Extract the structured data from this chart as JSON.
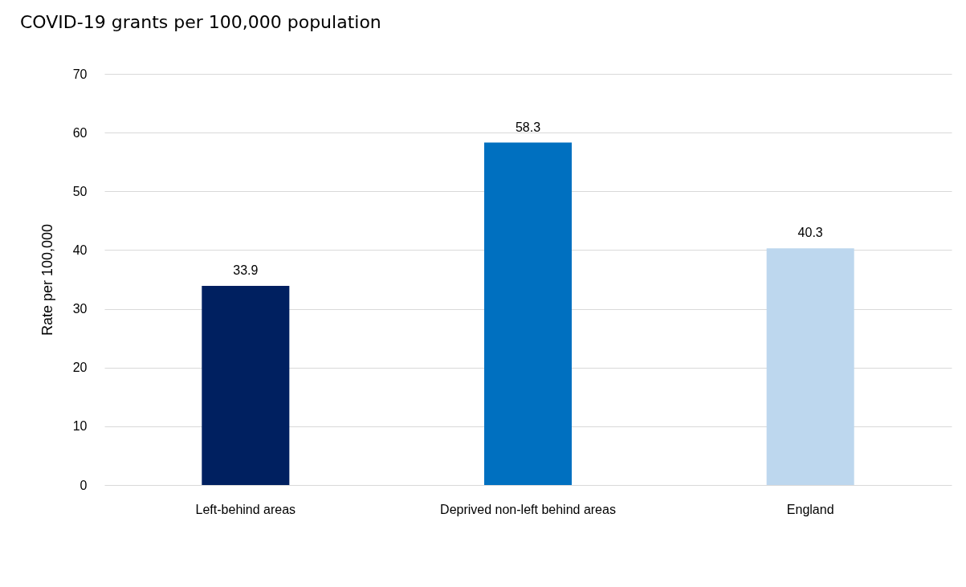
{
  "chart_data": {
    "type": "bar",
    "title": "COVID-19 grants per 100,000 population",
    "ylabel": "Rate per 100,000",
    "categories": [
      "Left-behind areas",
      "Deprived non-left behind areas",
      "England"
    ],
    "values": [
      33.9,
      58.3,
      40.3
    ],
    "colors": [
      "#002060",
      "#0070c0",
      "#bdd7ee"
    ],
    "ylim": [
      0,
      70
    ],
    "yticks": [
      0,
      10,
      20,
      30,
      40,
      50,
      60,
      70
    ],
    "grid": "y",
    "data_labels": true
  }
}
